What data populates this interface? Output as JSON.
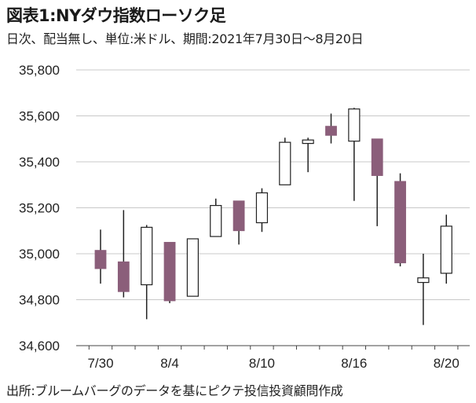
{
  "title": "図表1:NYダウ指数ローソク足",
  "subtitle": "日次、配当無し、単位:米ドル、期間:2021年7月30日～8月20日",
  "source": "出所:ブルームバーグのデータを基にピクテ投信投資顧問作成",
  "colors": {
    "down": "#8b5e7a",
    "up": "#ffffff",
    "stroke": "#222222",
    "grid": "#c8c8c8"
  },
  "chart_data": {
    "type": "candlestick",
    "ylim": [
      34600,
      35800
    ],
    "yticks": [
      "34,600",
      "34,800",
      "35,000",
      "35,200",
      "35,400",
      "35,600",
      "35,800"
    ],
    "ytick_values": [
      34600,
      34800,
      35000,
      35200,
      35400,
      35600,
      35800
    ],
    "xtick_labels": [
      "7/30",
      "8/4",
      "8/10",
      "8/16",
      "8/20"
    ],
    "xtick_dates": [
      "7/30",
      "8/4",
      "8/10",
      "8/16",
      "8/20"
    ],
    "grid": true,
    "candles": [
      {
        "date": "7/30",
        "open": 35015,
        "close": 34935,
        "high": 35105,
        "low": 34870
      },
      {
        "date": "8/2",
        "open": 34965,
        "close": 34835,
        "high": 35190,
        "low": 34810
      },
      {
        "date": "8/3",
        "open": 34865,
        "close": 35115,
        "high": 35125,
        "low": 34715
      },
      {
        "date": "8/4",
        "open": 35050,
        "close": 34795,
        "high": 35050,
        "low": 34785
      },
      {
        "date": "8/5",
        "open": 34815,
        "close": 35065,
        "high": 35065,
        "low": 34815
      },
      {
        "date": "8/6",
        "open": 35075,
        "close": 35210,
        "high": 35240,
        "low": 35075
      },
      {
        "date": "8/9",
        "open": 35230,
        "close": 35100,
        "high": 35230,
        "low": 35040
      },
      {
        "date": "8/10",
        "open": 35135,
        "close": 35265,
        "high": 35285,
        "low": 35095
      },
      {
        "date": "8/11",
        "open": 35300,
        "close": 35485,
        "high": 35505,
        "low": 35300
      },
      {
        "date": "8/12",
        "open": 35480,
        "close": 35495,
        "high": 35505,
        "low": 35355
      },
      {
        "date": "8/13",
        "open": 35555,
        "close": 35515,
        "high": 35610,
        "low": 35480
      },
      {
        "date": "8/16",
        "open": 35490,
        "close": 35630,
        "high": 35635,
        "low": 35230
      },
      {
        "date": "8/17",
        "open": 35500,
        "close": 35340,
        "high": 35500,
        "low": 35120
      },
      {
        "date": "8/18",
        "open": 35315,
        "close": 34960,
        "high": 35350,
        "low": 34945
      },
      {
        "date": "8/19",
        "open": 34875,
        "close": 34895,
        "high": 35000,
        "low": 34690
      },
      {
        "date": "8/20",
        "open": 34915,
        "close": 35120,
        "high": 35170,
        "low": 34870
      }
    ]
  }
}
